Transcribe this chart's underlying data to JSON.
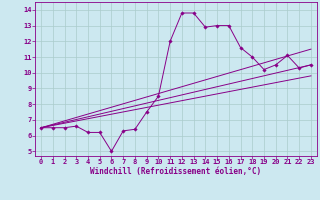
{
  "xlabel": "Windchill (Refroidissement éolien,°C)",
  "bg_color": "#cce8f0",
  "line_color": "#880088",
  "grid_color": "#aacccc",
  "xlim": [
    -0.5,
    23.5
  ],
  "ylim": [
    4.7,
    14.5
  ],
  "xticks": [
    0,
    1,
    2,
    3,
    4,
    5,
    6,
    7,
    8,
    9,
    10,
    11,
    12,
    13,
    14,
    15,
    16,
    17,
    18,
    19,
    20,
    21,
    22,
    23
  ],
  "yticks": [
    5,
    6,
    7,
    8,
    9,
    10,
    11,
    12,
    13,
    14
  ],
  "series": [
    {
      "x": [
        0,
        1,
        2,
        3,
        4,
        5,
        6,
        7,
        8,
        9,
        10,
        11,
        12,
        13,
        14,
        15,
        16,
        17,
        18,
        19,
        20,
        21,
        22,
        23
      ],
      "y": [
        6.5,
        6.5,
        6.5,
        6.6,
        6.2,
        6.2,
        5.0,
        6.3,
        6.4,
        7.5,
        8.5,
        12.0,
        13.8,
        13.8,
        12.9,
        13.0,
        13.0,
        11.6,
        11.0,
        10.2,
        10.5,
        11.1,
        10.3,
        10.5
      ],
      "has_markers": true
    },
    {
      "x": [
        0,
        23
      ],
      "y": [
        6.5,
        11.5
      ],
      "has_markers": false
    },
    {
      "x": [
        0,
        23
      ],
      "y": [
        6.5,
        10.5
      ],
      "has_markers": false
    },
    {
      "x": [
        0,
        23
      ],
      "y": [
        6.5,
        9.8
      ],
      "has_markers": false
    }
  ],
  "tick_fontsize": 5.0,
  "xlabel_fontsize": 5.5,
  "marker": "D",
  "markersize": 1.8,
  "linewidth": 0.7
}
